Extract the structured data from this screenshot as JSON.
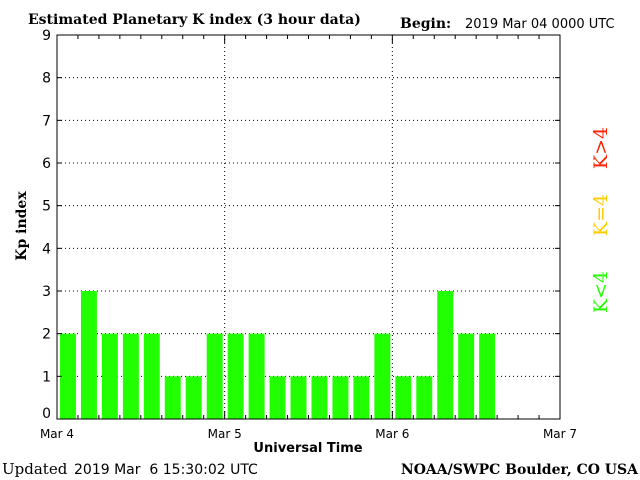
{
  "header": {
    "title": "Estimated Planetary K index (3 hour data)",
    "begin_label": "Begin:",
    "begin_value": "2019 Mar 04 0000 UTC"
  },
  "footer": {
    "updated_label": "Updated",
    "updated_value": "2019 Mar  6 15:30:02 UTC",
    "source": "NOAA/SWPC Boulder, CO USA"
  },
  "legend": {
    "k_high": "K>4",
    "k_equal": "K=4",
    "k_low": "K<4"
  },
  "colors": {
    "low": "#22ff00",
    "equal": "#ffcc00",
    "high": "#ff2200",
    "grid": "#000000",
    "axis": "#000000"
  },
  "chart_data": {
    "type": "bar",
    "title": "Estimated Planetary K index (3 hour data)",
    "xlabel": "Universal Time",
    "ylabel": "Kp index",
    "ylim": [
      0,
      9
    ],
    "yticks": [
      0,
      1,
      2,
      3,
      4,
      5,
      6,
      7,
      8,
      9
    ],
    "xticks": [
      "Mar 4",
      "Mar 5",
      "Mar 6",
      "Mar 7"
    ],
    "interval_hours": 3,
    "grid": true,
    "series": [
      {
        "values": [
          2,
          3,
          2,
          2,
          2,
          1,
          1,
          2,
          2,
          2,
          1,
          1,
          1,
          1,
          1,
          2,
          1,
          1,
          3,
          2,
          2
        ]
      }
    ]
  }
}
